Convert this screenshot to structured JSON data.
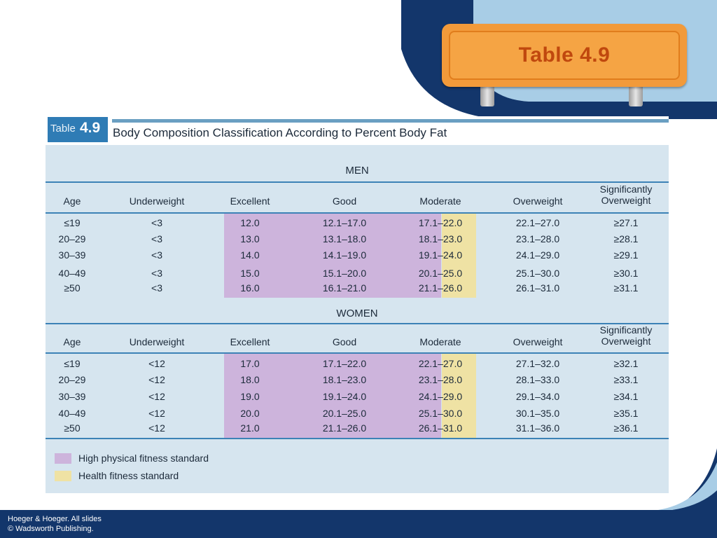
{
  "sign": {
    "label": "Table 4.9"
  },
  "table": {
    "badge_word": "Table",
    "badge_number": "4.9",
    "title": "Body Composition Classification According to Percent Body Fat",
    "columns": [
      "Age",
      "Underweight",
      "Excellent",
      "Good",
      "Moderate",
      "Overweight",
      "Significantly Overweight"
    ],
    "sections": [
      {
        "title": "MEN",
        "rows": [
          [
            "≤19",
            "<3",
            "12.0",
            "12.1–17.0",
            "17.1–22.0",
            "22.1–27.0",
            "≥27.1"
          ],
          [
            "20–29",
            "<3",
            "13.0",
            "13.1–18.0",
            "18.1–23.0",
            "23.1–28.0",
            "≥28.1"
          ],
          [
            "30–39",
            "<3",
            "14.0",
            "14.1–19.0",
            "19.1–24.0",
            "24.1–29.0",
            "≥29.1"
          ],
          [
            "40–49",
            "<3",
            "15.0",
            "15.1–20.0",
            "20.1–25.0",
            "25.1–30.0",
            "≥30.1"
          ],
          [
            "≥50",
            "<3",
            "16.0",
            "16.1–21.0",
            "21.1–26.0",
            "26.1–31.0",
            "≥31.1"
          ]
        ]
      },
      {
        "title": "WOMEN",
        "rows": [
          [
            "≤19",
            "<12",
            "17.0",
            "17.1–22.0",
            "22.1–27.0",
            "27.1–32.0",
            "≥32.1"
          ],
          [
            "20–29",
            "<12",
            "18.0",
            "18.1–23.0",
            "23.1–28.0",
            "28.1–33.0",
            "≥33.1"
          ],
          [
            "30–39",
            "<12",
            "19.0",
            "19.1–24.0",
            "24.1–29.0",
            "29.1–34.0",
            "≥34.1"
          ],
          [
            "40–49",
            "<12",
            "20.0",
            "20.1–25.0",
            "25.1–30.0",
            "30.1–35.0",
            "≥35.1"
          ],
          [
            "≥50",
            "<12",
            "21.0",
            "21.1–26.0",
            "26.1–31.0",
            "31.1–36.0",
            "≥36.1"
          ]
        ]
      }
    ],
    "legend": [
      {
        "label": "High physical fitness standard",
        "color": "#cdb4dc"
      },
      {
        "label": "Health fitness standard",
        "color": "#efe2a4"
      }
    ]
  },
  "footer": {
    "line1": "Hoeger & Hoeger. All slides",
    "line2": "© Wadsworth Publishing."
  },
  "colors": {
    "navy": "#13366b",
    "light_blue": "#a8cde6",
    "orange": "#f29a3a",
    "accent_blue": "#3c82b6"
  }
}
